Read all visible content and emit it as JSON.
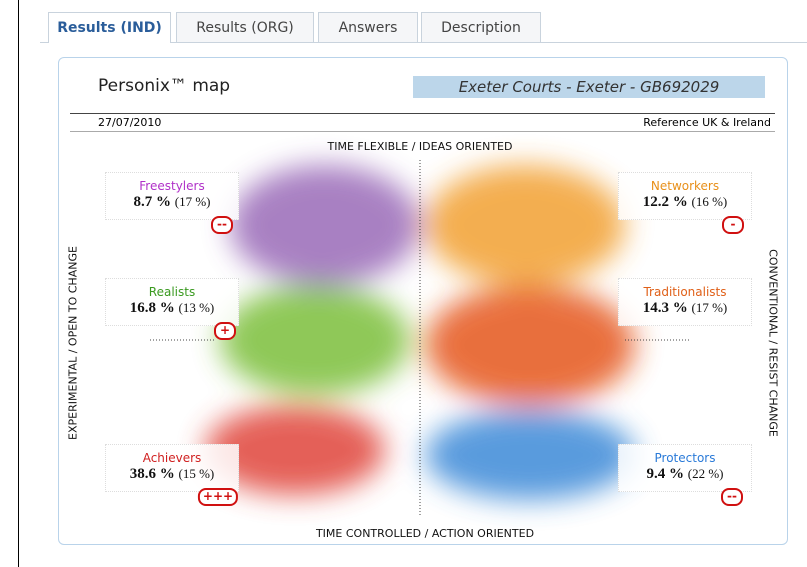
{
  "tabs": [
    "Results (IND)",
    "Results (ORG)",
    "Answers",
    "Description"
  ],
  "map": {
    "title": "Personix™ map",
    "location": "Exeter Courts - Exeter - GB692029",
    "date": "27/07/2010",
    "reference": "Reference UK & Ireland",
    "axes": {
      "top": "TIME FLEXIBLE / IDEAS ORIENTED",
      "bottom": "TIME CONTROLLED / ACTION ORIENTED",
      "left": "EXPERIMENTAL / OPEN TO CHANGE",
      "right": "CONVENTIONAL / RESIST CHANGE"
    },
    "segments": [
      {
        "name": "Freestylers",
        "value": "8.7 %",
        "reference": "(17 %)",
        "badge": "--"
      },
      {
        "name": "Realists",
        "value": "16.8 %",
        "reference": "(13 %)",
        "badge": "+"
      },
      {
        "name": "Achievers",
        "value": "38.6 %",
        "reference": "(15 %)",
        "badge": "+++"
      },
      {
        "name": "Networkers",
        "value": "12.2 %",
        "reference": "(16 %)",
        "badge": "-"
      },
      {
        "name": "Traditionalists",
        "value": "14.3 %",
        "reference": "(17 %)"
      },
      {
        "name": "Protectors",
        "value": "9.4 %",
        "reference": "(22 %)",
        "badge": "--"
      }
    ]
  }
}
